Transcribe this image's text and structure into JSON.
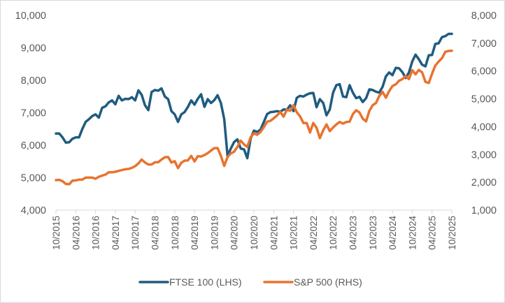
{
  "chart_data": {
    "type": "line",
    "title": "",
    "xlabel": "",
    "ylabel_left": "",
    "ylabel_right": "",
    "x_start": "10/2015",
    "x_end": "10/2025",
    "x_frequency": "monthly",
    "x_tick_labels": [
      "10/2015",
      "04/2016",
      "10/2016",
      "04/2017",
      "10/2017",
      "04/2018",
      "10/2018",
      "04/2019",
      "10/2019",
      "04/2020",
      "10/2020",
      "04/2021",
      "10/2021",
      "04/2022",
      "10/2022",
      "04/2023",
      "10/2023",
      "04/2024",
      "10/2024",
      "04/2025",
      "10/2025"
    ],
    "y_left": {
      "range": [
        4000,
        10000
      ],
      "ticks": [
        4000,
        5000,
        6000,
        7000,
        8000,
        9000,
        10000
      ],
      "tick_labels": [
        "4,000",
        "5,000",
        "6,000",
        "7,000",
        "8,000",
        "9,000",
        "10,000"
      ]
    },
    "y_right": {
      "range": [
        1000,
        8000
      ],
      "ticks": [
        1000,
        2000,
        3000,
        4000,
        5000,
        6000,
        7000,
        8000
      ],
      "tick_labels": [
        "1,000",
        "2,000",
        "3,000",
        "4,000",
        "5,000",
        "6,000",
        "7,000",
        "8,000"
      ]
    },
    "grid": false,
    "legend_position": "bottom",
    "series": [
      {
        "name": "FTSE 100 (LHS)",
        "axis": "left",
        "color": "#1f5c80",
        "values": [
          6360,
          6360,
          6240,
          6080,
          6090,
          6200,
          6240,
          6240,
          6500,
          6720,
          6800,
          6900,
          6950,
          6850,
          7150,
          7200,
          7320,
          7380,
          7260,
          7520,
          7380,
          7430,
          7420,
          7480,
          7380,
          7690,
          7550,
          7230,
          7080,
          7640,
          7700,
          7680,
          7750,
          7500,
          7420,
          7050,
          6950,
          6720,
          6950,
          7020,
          7180,
          7380,
          7250,
          7430,
          7570,
          7180,
          7420,
          7300,
          7390,
          7540,
          7300,
          6800,
          5670,
          5900,
          6100,
          6180,
          5900,
          5870,
          5600,
          6200,
          6450,
          6410,
          6480,
          6710,
          6960,
          7020,
          7030,
          7050,
          7030,
          7100,
          7090,
          7230,
          7050,
          7460,
          7520,
          7500,
          7560,
          7600,
          7610,
          7170,
          7420,
          7300,
          6920,
          7100,
          7620,
          7850,
          7880,
          7500,
          7480,
          7850,
          7620,
          7450,
          7490,
          7330,
          7450,
          7720,
          7700,
          7650,
          7620,
          7800,
          8120,
          8240,
          8160,
          8380,
          8370,
          8250,
          8070,
          8240,
          8580,
          8790,
          8650,
          8480,
          8430,
          8770,
          8780,
          9120,
          9140,
          9330,
          9360,
          9430,
          9430
        ]
      },
      {
        "name": "S&P 500 (RHS)",
        "axis": "right",
        "color": "#e8732f",
        "values": [
          2080,
          2090,
          2040,
          1940,
          1930,
          2060,
          2070,
          2100,
          2100,
          2170,
          2170,
          2170,
          2130,
          2200,
          2240,
          2280,
          2360,
          2360,
          2380,
          2410,
          2440,
          2470,
          2480,
          2520,
          2580,
          2680,
          2820,
          2710,
          2640,
          2640,
          2720,
          2720,
          2820,
          2900,
          2910,
          2710,
          2760,
          2510,
          2700,
          2780,
          2790,
          2950,
          2750,
          2940,
          2930,
          2980,
          3050,
          3140,
          3230,
          3230,
          2950,
          2590,
          2910,
          3040,
          3100,
          3270,
          3500,
          3360,
          3270,
          3620,
          3760,
          3710,
          3810,
          3980,
          4180,
          4210,
          4300,
          4400,
          4530,
          4360,
          4610,
          4570,
          4770,
          4520,
          4370,
          4130,
          4130,
          3790,
          4130,
          3960,
          3590,
          3870,
          4080,
          3840,
          3970,
          4080,
          4170,
          4110,
          4170,
          4180,
          4450,
          4590,
          4510,
          4290,
          4190,
          4570,
          4770,
          4850,
          5100,
          5250,
          5040,
          5280,
          5460,
          5520,
          5650,
          5710,
          5820,
          5710,
          6030,
          5880,
          6040,
          5950,
          5610,
          5570,
          5900,
          6200,
          6340,
          6460,
          6690,
          6720,
          6730
        ]
      }
    ]
  }
}
